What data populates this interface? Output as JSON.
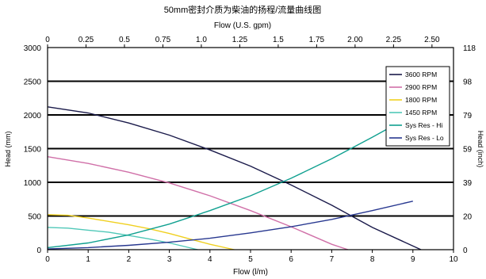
{
  "chart_data": {
    "type": "line",
    "title": "50mm密封介质为柴油的扬程/流量曲线图",
    "xlabel": "Flow (l/m)",
    "x2label": "Flow (U.S. gpm)",
    "ylabel": "Head (mm)",
    "y2label": "Head (inch)",
    "xlim": [
      0,
      10
    ],
    "ylim": [
      0,
      3000
    ],
    "x2lim": [
      0,
      2.64
    ],
    "x_ticks": [
      "0",
      "1",
      "2",
      "3",
      "4",
      "5",
      "6",
      "7",
      "8",
      "9",
      "10"
    ],
    "y_ticks": [
      "0",
      "500",
      "1000",
      "1500",
      "2000",
      "2500",
      "3000"
    ],
    "x2_ticks": [
      "0",
      "0.25",
      "0.5",
      "0.75",
      "1.0",
      "1.25",
      "1.5",
      "1.75",
      "2.00",
      "2.25",
      "2.50"
    ],
    "y2_ticks": [
      "0",
      "20",
      "39",
      "59",
      "79",
      "98",
      "118"
    ],
    "grid": "horizontal",
    "legend_position": "top-right",
    "colors": {
      "rpm3600": "#1a1a4a",
      "rpm2900": "#d070a8",
      "rpm1800": "#f0d020",
      "rpm1450": "#50c8b8",
      "sys_hi": "#10a090",
      "sys_lo": "#283890"
    },
    "series": [
      {
        "name": "3600 RPM",
        "key": "rpm3600",
        "x": [
          0,
          1,
          2,
          3,
          4,
          5,
          6,
          7,
          8,
          9.2
        ],
        "y": [
          2120,
          2030,
          1880,
          1700,
          1480,
          1240,
          960,
          660,
          330,
          0
        ]
      },
      {
        "name": "2900 RPM",
        "key": "rpm2900",
        "x": [
          0,
          1,
          2,
          3,
          4,
          5,
          6,
          7,
          7.4
        ],
        "y": [
          1380,
          1280,
          1150,
          990,
          800,
          580,
          340,
          80,
          0
        ]
      },
      {
        "name": "1800 RPM",
        "key": "rpm1800",
        "x": [
          0,
          0.5,
          1,
          1.5,
          2,
          2.5,
          3,
          3.5,
          4,
          4.6
        ],
        "y": [
          520,
          510,
          470,
          420,
          370,
          310,
          240,
          160,
          80,
          0
        ]
      },
      {
        "name": "1450 RPM",
        "key": "rpm1450",
        "x": [
          0,
          0.5,
          1,
          1.5,
          2,
          2.5,
          3,
          3.7
        ],
        "y": [
          330,
          320,
          290,
          260,
          210,
          160,
          100,
          0
        ]
      },
      {
        "name": "Sys Res - Hi",
        "key": "sys_hi",
        "x": [
          0,
          1,
          2,
          3,
          4,
          5,
          6,
          7,
          8,
          9
        ],
        "y": [
          30,
          100,
          220,
          380,
          580,
          800,
          1060,
          1350,
          1670,
          2000
        ]
      },
      {
        "name": "Sys Res - Lo",
        "key": "sys_lo",
        "x": [
          0,
          1,
          2,
          3,
          4,
          5,
          6,
          7,
          8,
          9
        ],
        "y": [
          10,
          30,
          65,
          110,
          170,
          250,
          340,
          450,
          580,
          720
        ]
      }
    ]
  }
}
